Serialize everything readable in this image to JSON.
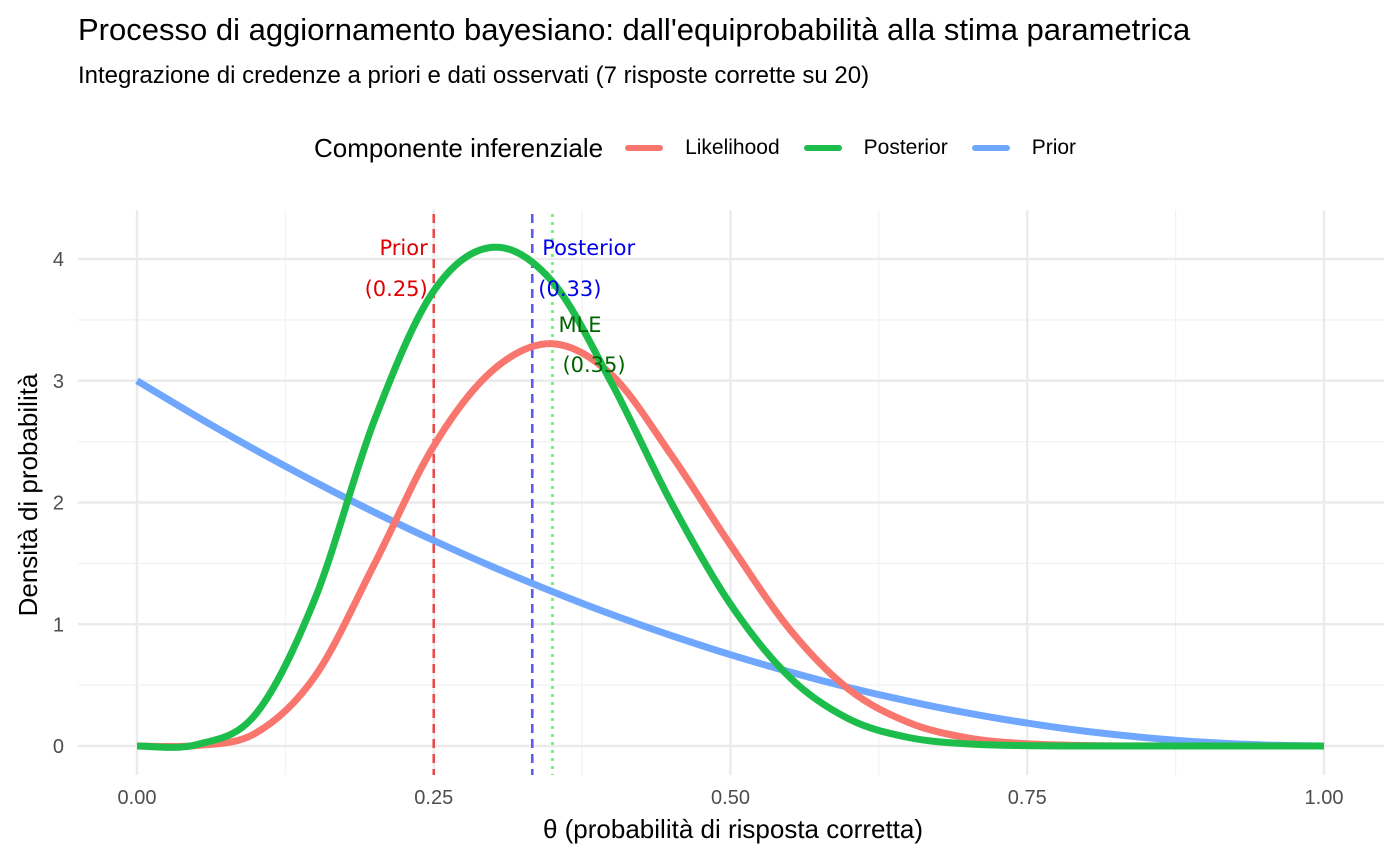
{
  "title": "Processo di aggiornamento bayesiano: dall'equiprobabilità alla stima parametrica",
  "subtitle": "Integrazione di credenze a priori e dati osservati (7 risposte corrette su 20)",
  "legend": {
    "title": "Componente inferenziale",
    "items": [
      {
        "label": "Likelihood",
        "color": "#F8766D"
      },
      {
        "label": "Posterior",
        "color": "#1DBD4C"
      },
      {
        "label": "Prior",
        "color": "#6FA7FF"
      }
    ]
  },
  "chart_data": {
    "type": "line",
    "title": "Processo di aggiornamento bayesiano: dall'equiprobabilità alla stima parametrica",
    "subtitle": "Integrazione di credenze a priori e dati osservati (7 risposte corrette su 20)",
    "xlabel": "θ  (probabilità di risposta corretta)",
    "ylabel": "Densità di probabilità",
    "xlim": [
      -0.05,
      1.05
    ],
    "ylim": [
      -0.15,
      4.6
    ],
    "x_ticks": [
      "0.00",
      "0.25",
      "0.50",
      "0.75",
      "1.00"
    ],
    "x_tick_values": [
      0,
      0.25,
      0.5,
      0.75,
      1
    ],
    "y_ticks": [
      "0",
      "1",
      "2",
      "3",
      "4"
    ],
    "y_tick_values": [
      0,
      1,
      2,
      3,
      4
    ],
    "grid": true,
    "legend_position": "top",
    "series": [
      {
        "name": "Likelihood",
        "color": "#F8766D",
        "x": [
          0,
          0.05,
          0.1,
          0.15,
          0.2,
          0.25,
          0.3,
          0.35,
          0.4,
          0.45,
          0.5,
          0.55,
          0.6,
          0.65,
          0.7,
          0.75,
          0.8,
          0.85,
          0.9,
          0.95,
          1
        ],
        "y": [
          0,
          0.004,
          0.106,
          0.573,
          1.494,
          2.465,
          3.088,
          3.304,
          3.046,
          2.392,
          1.651,
          0.957,
          0.463,
          0.193,
          0.066,
          0.018,
          0.004,
          0.001,
          0,
          0,
          0
        ]
      },
      {
        "name": "Posterior",
        "color": "#1DBD4C",
        "x": [
          0,
          0.05,
          0.1,
          0.15,
          0.2,
          0.25,
          0.3,
          0.35,
          0.4,
          0.45,
          0.5,
          0.55,
          0.6,
          0.65,
          0.7,
          0.75,
          0.8,
          0.85,
          0.9,
          0.95,
          1
        ],
        "y": [
          0,
          0.011,
          0.262,
          1.211,
          2.675,
          3.738,
          4.096,
          3.813,
          2.978,
          2.001,
          1.165,
          0.563,
          0.221,
          0.07,
          0.017,
          0.003,
          0,
          0,
          0,
          0,
          0
        ]
      },
      {
        "name": "Prior",
        "color": "#6FA7FF",
        "x": [
          0,
          0.05,
          0.1,
          0.15,
          0.2,
          0.25,
          0.3,
          0.35,
          0.4,
          0.45,
          0.5,
          0.55,
          0.6,
          0.65,
          0.7,
          0.75,
          0.8,
          0.85,
          0.9,
          0.95,
          1
        ],
        "y": [
          3.0,
          2.708,
          2.43,
          2.168,
          1.92,
          1.688,
          1.47,
          1.268,
          1.08,
          0.908,
          0.75,
          0.608,
          0.48,
          0.368,
          0.27,
          0.188,
          0.12,
          0.068,
          0.03,
          0.008,
          0
        ]
      }
    ],
    "vlines": [
      {
        "x": 0.25,
        "label": "Prior",
        "value_label": "(0.25)",
        "color": "#E84A4A",
        "style": "dashed"
      },
      {
        "x": 0.333,
        "label": "Posterior",
        "value_label": "(0.33)",
        "color": "#5B5BF0",
        "style": "dashed"
      },
      {
        "x": 0.35,
        "label": "MLE",
        "value_label": "(0.35)",
        "color": "#66F266",
        "style": "dotted"
      }
    ],
    "annotation_colors": {
      "Prior": "#E00000",
      "Posterior": "#0000EE",
      "MLE": "#006400"
    }
  }
}
